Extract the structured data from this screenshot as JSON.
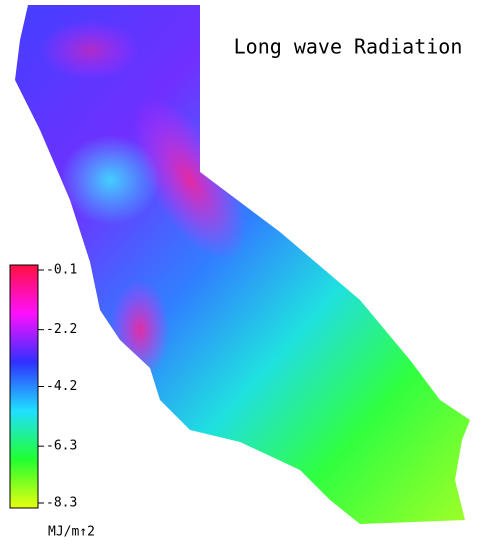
{
  "title": "Long wave Radiation",
  "legend": {
    "unit": "MJ/m↑2",
    "ticks": [
      -0.1,
      -2.2,
      -4.2,
      -6.3,
      -8.3
    ],
    "colors": [
      "#ff1040",
      "#ff10ff",
      "#3030ff",
      "#20e0ff",
      "#20ff30",
      "#e8ff10"
    ]
  }
}
